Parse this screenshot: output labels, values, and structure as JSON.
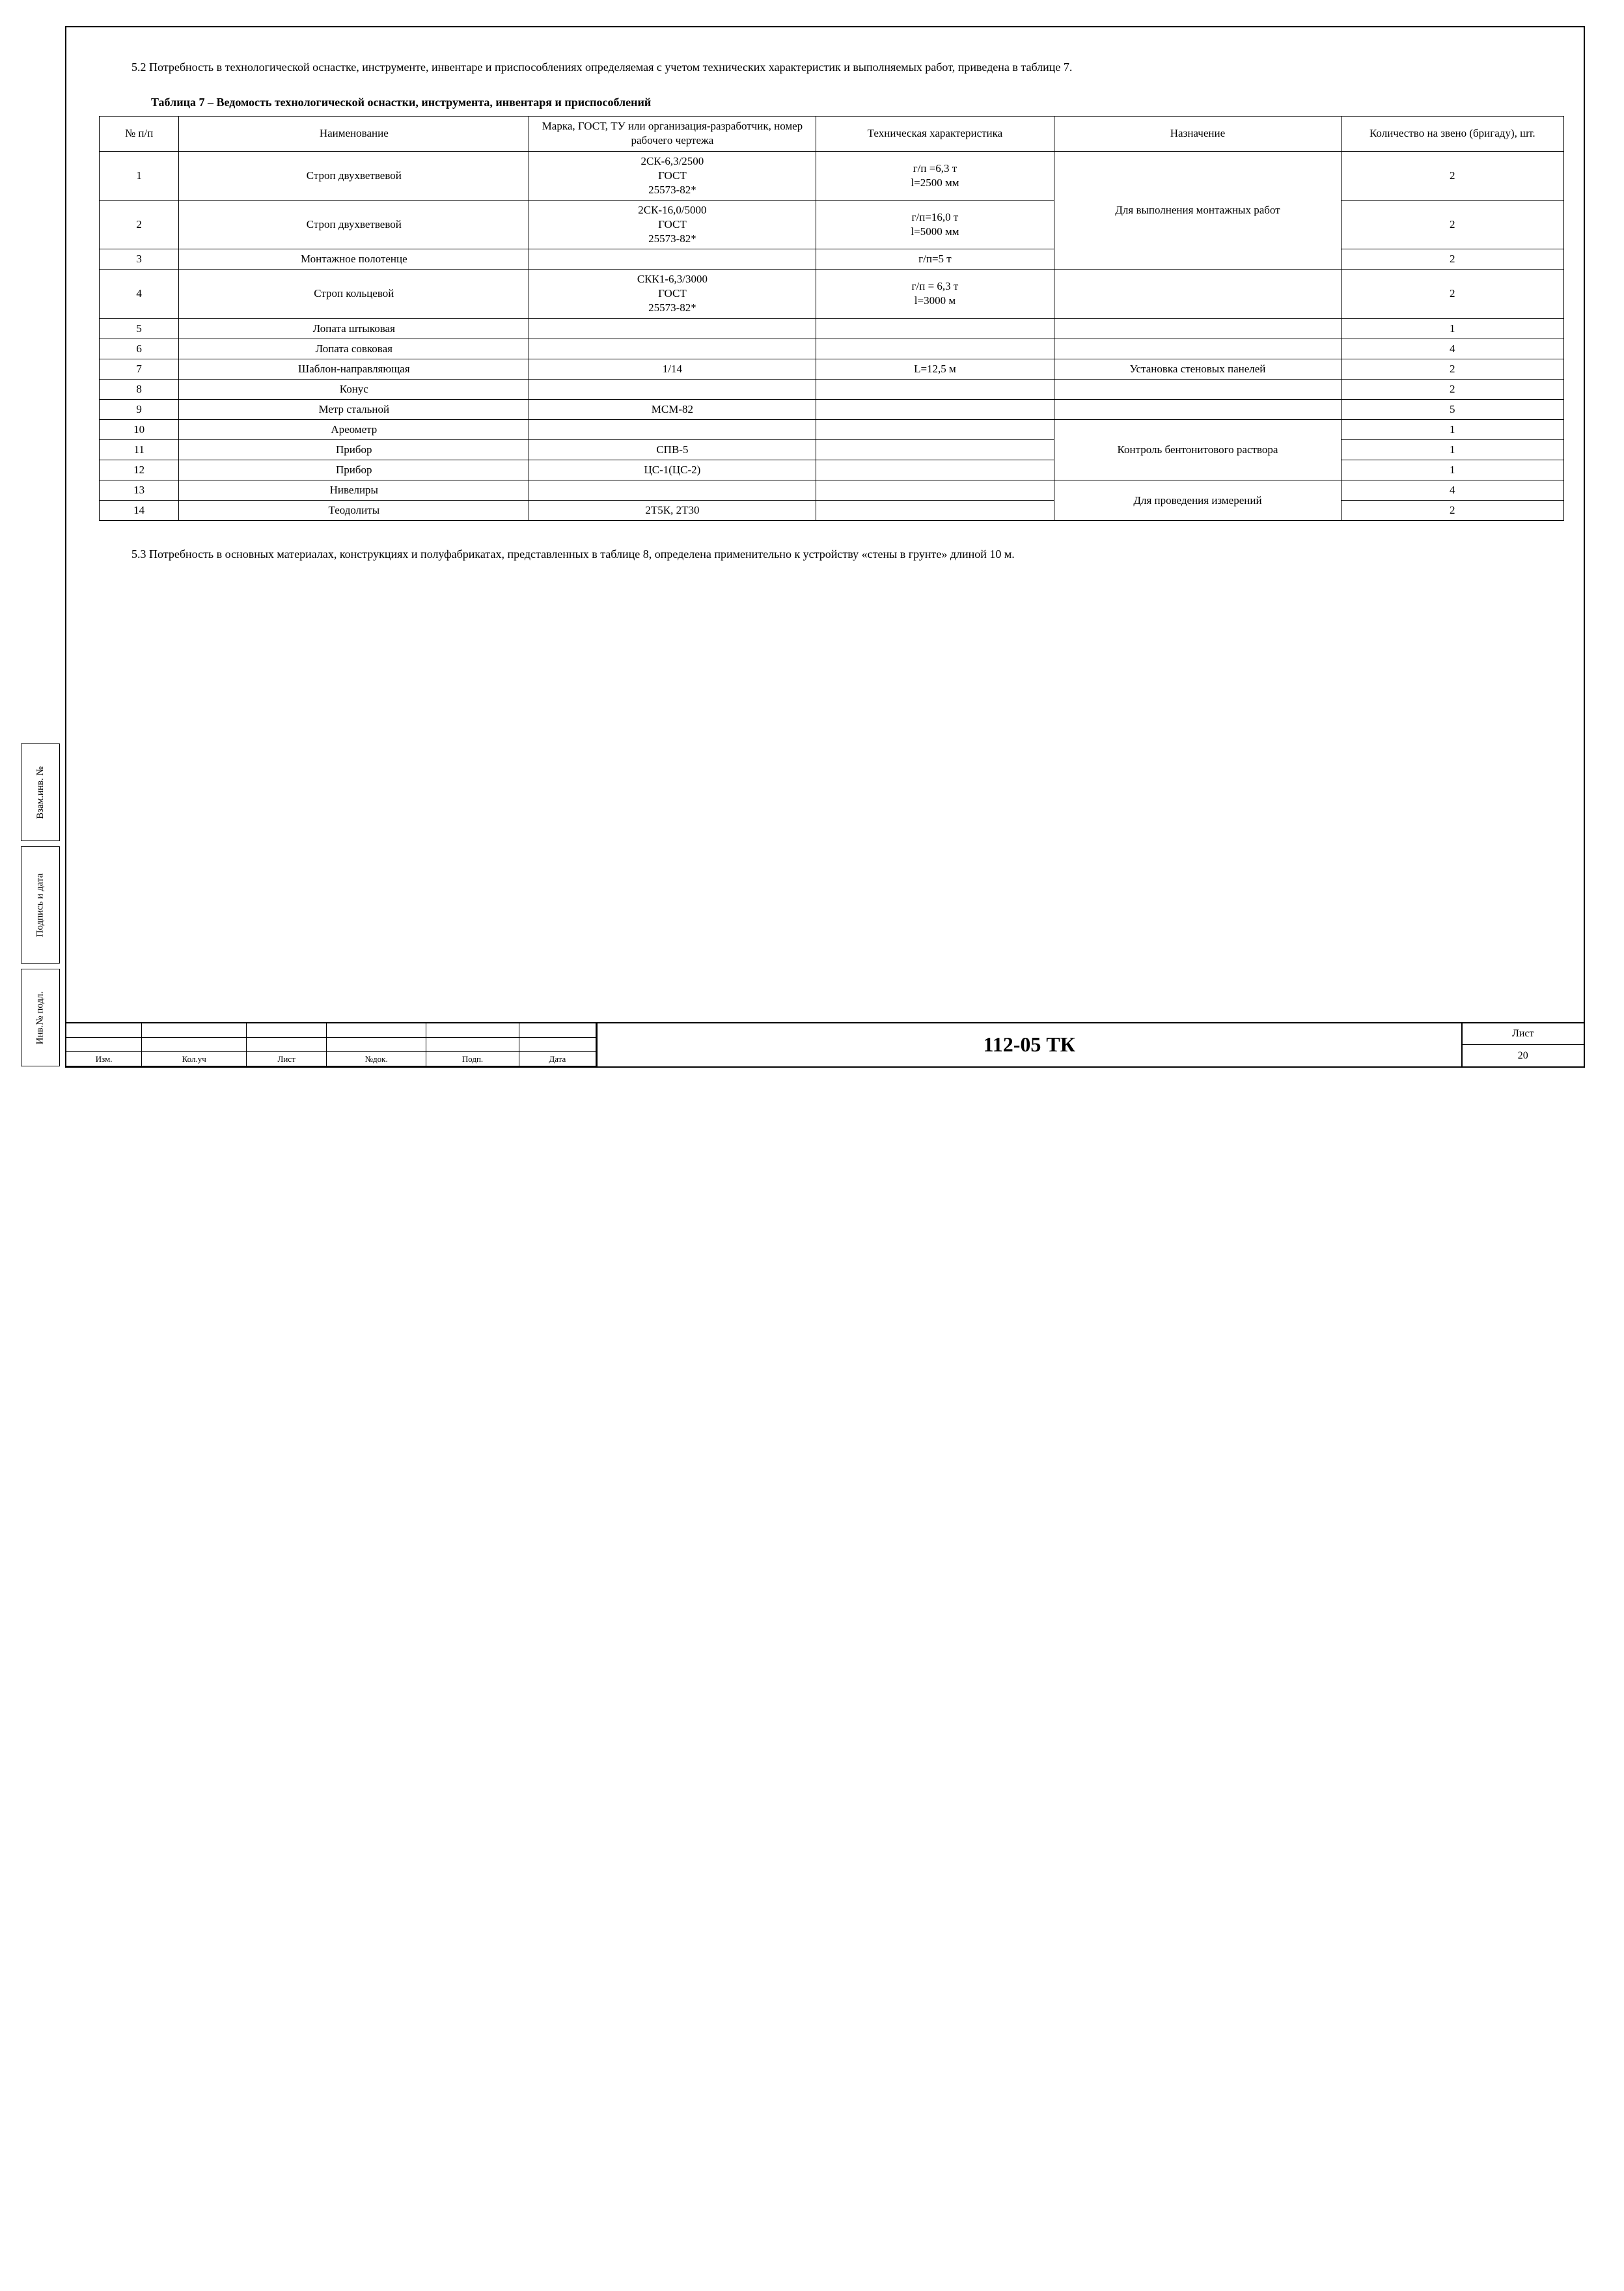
{
  "paragraph_5_2": "5.2 Потребность в технологической оснастке, инструменте, инвентаре и приспособлениях определяемая с учетом технических характеристик и выполняемых работ, приведена в таблице 7.",
  "table7": {
    "caption": "Таблица 7 – Ведомость технологической оснастки, инструмента, инвентаря и приспособлений",
    "headers": {
      "num": "№ п/п",
      "name": "Наименование",
      "mark": "Марка, ГОСТ, ТУ или организация-разработчик, номер рабочего чертежа",
      "tech": "Техническая характеристика",
      "purpose": "Назначение",
      "qty": "Количество на звено (бригаду), шт."
    },
    "rows": [
      {
        "num": "1",
        "name": "Строп двухветвевой",
        "mark": "2СК-6,3/2500 ГОСТ 25573-82*",
        "tech": "г/п =6,3 т l=2500 мм",
        "purpose": "Для выполнения монтажных работ",
        "qty": "2",
        "purpose_rowspan": 3
      },
      {
        "num": "2",
        "name": "Строп двухветвевой",
        "mark": "2СК-16,0/5000 ГОСТ 25573-82*",
        "tech": "г/п=16,0 т l=5000 мм",
        "qty": "2"
      },
      {
        "num": "3",
        "name": "Монтажное полотенце",
        "mark": "",
        "tech": "г/п=5 т",
        "qty": "2"
      },
      {
        "num": "4",
        "name": "Строп кольцевой",
        "mark": "СКК1-6,3/3000 ГОСТ 25573-82*",
        "tech": "г/п = 6,3 т l=3000 м",
        "purpose": "",
        "qty": "2"
      },
      {
        "num": "5",
        "name": "Лопата штыковая",
        "mark": "",
        "tech": "",
        "purpose": "",
        "qty": "1"
      },
      {
        "num": "6",
        "name": "Лопата совковая",
        "mark": "",
        "tech": "",
        "purpose": "",
        "qty": "4"
      },
      {
        "num": "7",
        "name": "Шаблон-направляющая",
        "mark": "1/14",
        "tech": "L=12,5 м",
        "purpose": "Установка стеновых панелей",
        "qty": "2"
      },
      {
        "num": "8",
        "name": "Конус",
        "mark": "",
        "tech": "",
        "purpose": "",
        "qty": "2"
      },
      {
        "num": "9",
        "name": "Метр стальной",
        "mark": "МСМ-82",
        "tech": "",
        "purpose": "",
        "qty": "5"
      },
      {
        "num": "10",
        "name": "Ареометр",
        "mark": "",
        "tech": "",
        "purpose": "Контроль бентонитового раствора",
        "qty": "1",
        "purpose_rowspan": 3
      },
      {
        "num": "11",
        "name": "Прибор",
        "mark": "СПВ-5",
        "tech": "",
        "qty": "1"
      },
      {
        "num": "12",
        "name": "Прибор",
        "mark": "ЦС-1(ЦС-2)",
        "tech": "",
        "qty": "1"
      },
      {
        "num": "13",
        "name": "Нивелиры",
        "mark": "",
        "tech": "",
        "purpose": "Для проведения измерений",
        "qty": "4",
        "purpose_rowspan": 2
      },
      {
        "num": "14",
        "name": "Теодолиты",
        "mark": "2Т5К, 2Т30",
        "tech": "",
        "qty": "2"
      }
    ]
  },
  "paragraph_5_3": "5.3   Потребность в основных материалах, конструкциях и полуфабрикатах, представленных в таблице 8, определена применительно к устройству «стены в грунте» длиной 10 м.",
  "sidebar": {
    "box1": "Взам.инв. №",
    "box2": "Подпись и дата",
    "box3": "Инв.№ подл."
  },
  "title_block": {
    "left_headers": [
      "Изм.",
      "Кол.уч",
      "Лист",
      "№док.",
      "Подп.",
      "Дата"
    ],
    "doc_code": "112-05 ТК",
    "sheet_label": "Лист",
    "sheet_num": "20"
  },
  "styling": {
    "border_color": "#000000",
    "background_color": "#ffffff",
    "text_color": "#000000",
    "body_fontsize_pt": 14,
    "doc_code_fontsize_pt": 24,
    "font_family": "Times New Roman"
  }
}
